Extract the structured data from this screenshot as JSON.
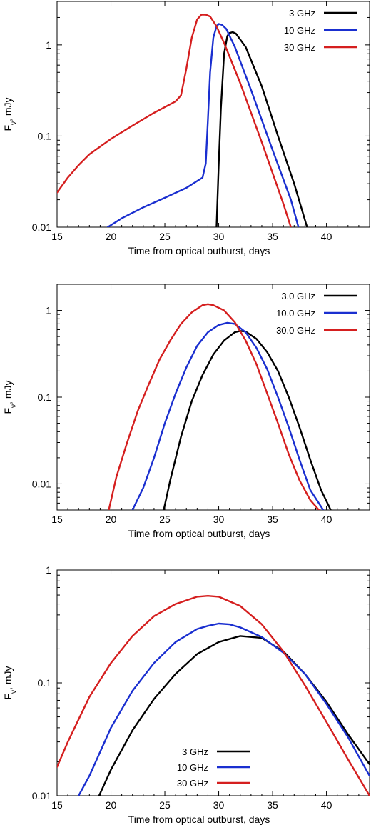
{
  "chart_data": [
    {
      "type": "line",
      "xlabel": "Time from optical outburst, days",
      "ylabel": "F_v, mJy",
      "ylabel_main": "F",
      "ylabel_sub": "ν",
      "ylabel_rest": ", mJy",
      "xlim": [
        15,
        44
      ],
      "ylim": [
        0.01,
        3.0
      ],
      "log_y": true,
      "x_ticks": [
        15,
        20,
        25,
        30,
        35,
        40
      ],
      "y_ticks": [
        {
          "value": 0.01,
          "label": "0.01"
        },
        {
          "value": 0.1,
          "label": "0.1"
        },
        {
          "value": 1,
          "label": "1"
        }
      ],
      "legend_position": "top-right",
      "series": [
        {
          "name": "3 GHz",
          "color": "#000000",
          "x": [
            29.8,
            30.0,
            30.2,
            30.5,
            30.8,
            31.0,
            31.3,
            31.6,
            32.5,
            34,
            35.5,
            37,
            38.2
          ],
          "y": [
            0.01,
            0.05,
            0.2,
            0.8,
            1.25,
            1.35,
            1.38,
            1.33,
            0.95,
            0.35,
            0.1,
            0.03,
            0.01
          ]
        },
        {
          "name": "10 GHz",
          "color": "#1a2fd0",
          "x": [
            19.7,
            21,
            23,
            25,
            27,
            28.5,
            28.8,
            29.0,
            29.2,
            29.5,
            29.8,
            30.0,
            30.3,
            30.7,
            31.5,
            33,
            35,
            36.7,
            37.4
          ],
          "y": [
            0.01,
            0.0125,
            0.0165,
            0.021,
            0.027,
            0.035,
            0.05,
            0.15,
            0.5,
            1.2,
            1.6,
            1.7,
            1.66,
            1.5,
            0.95,
            0.32,
            0.07,
            0.02,
            0.01
          ]
        },
        {
          "name": "30 GHz",
          "color": "#d51f1f",
          "x": [
            15,
            16,
            17,
            18,
            20,
            22,
            24,
            26,
            26.5,
            27,
            27.5,
            28,
            28.4,
            28.8,
            29.2,
            29.8,
            30.5,
            32,
            34,
            36,
            36.7
          ],
          "y": [
            0.024,
            0.035,
            0.048,
            0.063,
            0.093,
            0.13,
            0.18,
            0.24,
            0.28,
            0.55,
            1.2,
            1.9,
            2.15,
            2.15,
            2.05,
            1.6,
            1.05,
            0.38,
            0.085,
            0.018,
            0.01
          ]
        }
      ]
    },
    {
      "type": "line",
      "xlabel": "Time from optical outburst, days",
      "ylabel": "F_v, mJy",
      "ylabel_main": "F",
      "ylabel_sub": "ν",
      "ylabel_rest": ", mJy",
      "xlim": [
        15,
        44
      ],
      "ylim": [
        0.005,
        2.0
      ],
      "log_y": true,
      "x_ticks": [
        15,
        20,
        25,
        30,
        35,
        40
      ],
      "y_ticks": [
        {
          "value": 0.01,
          "label": "0.01"
        },
        {
          "value": 0.1,
          "label": "0.1"
        },
        {
          "value": 1,
          "label": "1"
        }
      ],
      "legend_position": "top-right",
      "series": [
        {
          "name": "3.0 GHz",
          "color": "#000000",
          "x": [
            24.9,
            25.5,
            26.5,
            27.5,
            28.5,
            29.5,
            30.5,
            31.5,
            32,
            32.5,
            33.5,
            34.5,
            35.5,
            36.5,
            37.5,
            38.5,
            39.5,
            40.4
          ],
          "y": [
            0.005,
            0.011,
            0.035,
            0.09,
            0.18,
            0.31,
            0.45,
            0.56,
            0.58,
            0.57,
            0.47,
            0.33,
            0.2,
            0.1,
            0.045,
            0.019,
            0.0085,
            0.005
          ]
        },
        {
          "name": "10.0 GHz",
          "color": "#1a2fd0",
          "x": [
            22.0,
            23,
            24,
            25,
            26,
            27,
            28,
            29,
            30,
            30.8,
            31.5,
            32.5,
            33.5,
            34.5,
            35.5,
            36.5,
            37.5,
            38.5,
            39.7
          ],
          "y": [
            0.005,
            0.009,
            0.02,
            0.05,
            0.11,
            0.22,
            0.39,
            0.56,
            0.68,
            0.72,
            0.7,
            0.56,
            0.37,
            0.21,
            0.1,
            0.045,
            0.019,
            0.0085,
            0.005
          ]
        },
        {
          "name": "30.0 GHz",
          "color": "#d51f1f",
          "x": [
            19.8,
            20.5,
            21.5,
            22.5,
            23.5,
            24.5,
            25.5,
            26.5,
            27.5,
            28.5,
            29,
            29.5,
            30.5,
            31.5,
            32.5,
            33.5,
            34.5,
            35.5,
            36.5,
            37.5,
            38.5,
            39.3
          ],
          "y": [
            0.005,
            0.012,
            0.03,
            0.07,
            0.14,
            0.27,
            0.45,
            0.7,
            0.95,
            1.15,
            1.18,
            1.15,
            1.0,
            0.73,
            0.45,
            0.24,
            0.11,
            0.05,
            0.022,
            0.011,
            0.0065,
            0.005
          ]
        }
      ]
    },
    {
      "type": "line",
      "xlabel": "Time from optical outburst, days",
      "ylabel": "F_v, mJy",
      "ylabel_main": "F",
      "ylabel_sub": "ν",
      "ylabel_rest": ", mJy",
      "xlim": [
        15,
        44
      ],
      "ylim": [
        0.01,
        1.0
      ],
      "log_y": true,
      "x_ticks": [
        15,
        20,
        25,
        30,
        35,
        40
      ],
      "y_ticks": [
        {
          "value": 0.01,
          "label": "0.01"
        },
        {
          "value": 0.1,
          "label": "0.1"
        },
        {
          "value": 1,
          "label": "1"
        }
      ],
      "legend_position": "bottom-center",
      "series": [
        {
          "name": "3 GHz",
          "color": "#000000",
          "x": [
            18.9,
            20,
            22,
            24,
            26,
            28,
            30,
            32,
            34,
            36,
            38,
            40,
            42,
            44
          ],
          "y": [
            0.01,
            0.017,
            0.038,
            0.072,
            0.12,
            0.18,
            0.23,
            0.26,
            0.25,
            0.19,
            0.12,
            0.068,
            0.035,
            0.019
          ]
        },
        {
          "name": "10 GHz",
          "color": "#1a2fd0",
          "x": [
            17.0,
            18,
            20,
            22,
            24,
            26,
            28,
            29,
            30,
            31,
            32,
            34,
            36,
            38,
            40,
            42,
            44
          ],
          "y": [
            0.01,
            0.015,
            0.04,
            0.085,
            0.15,
            0.23,
            0.3,
            0.32,
            0.335,
            0.33,
            0.31,
            0.255,
            0.185,
            0.12,
            0.065,
            0.033,
            0.015
          ]
        },
        {
          "name": "30 GHz",
          "color": "#d51f1f",
          "x": [
            15,
            16,
            18,
            20,
            22,
            24,
            26,
            28,
            29,
            30,
            32,
            34,
            36,
            38,
            40,
            42,
            44
          ],
          "y": [
            0.018,
            0.03,
            0.075,
            0.15,
            0.26,
            0.39,
            0.5,
            0.58,
            0.59,
            0.58,
            0.48,
            0.33,
            0.19,
            0.095,
            0.045,
            0.021,
            0.01
          ]
        }
      ]
    }
  ]
}
